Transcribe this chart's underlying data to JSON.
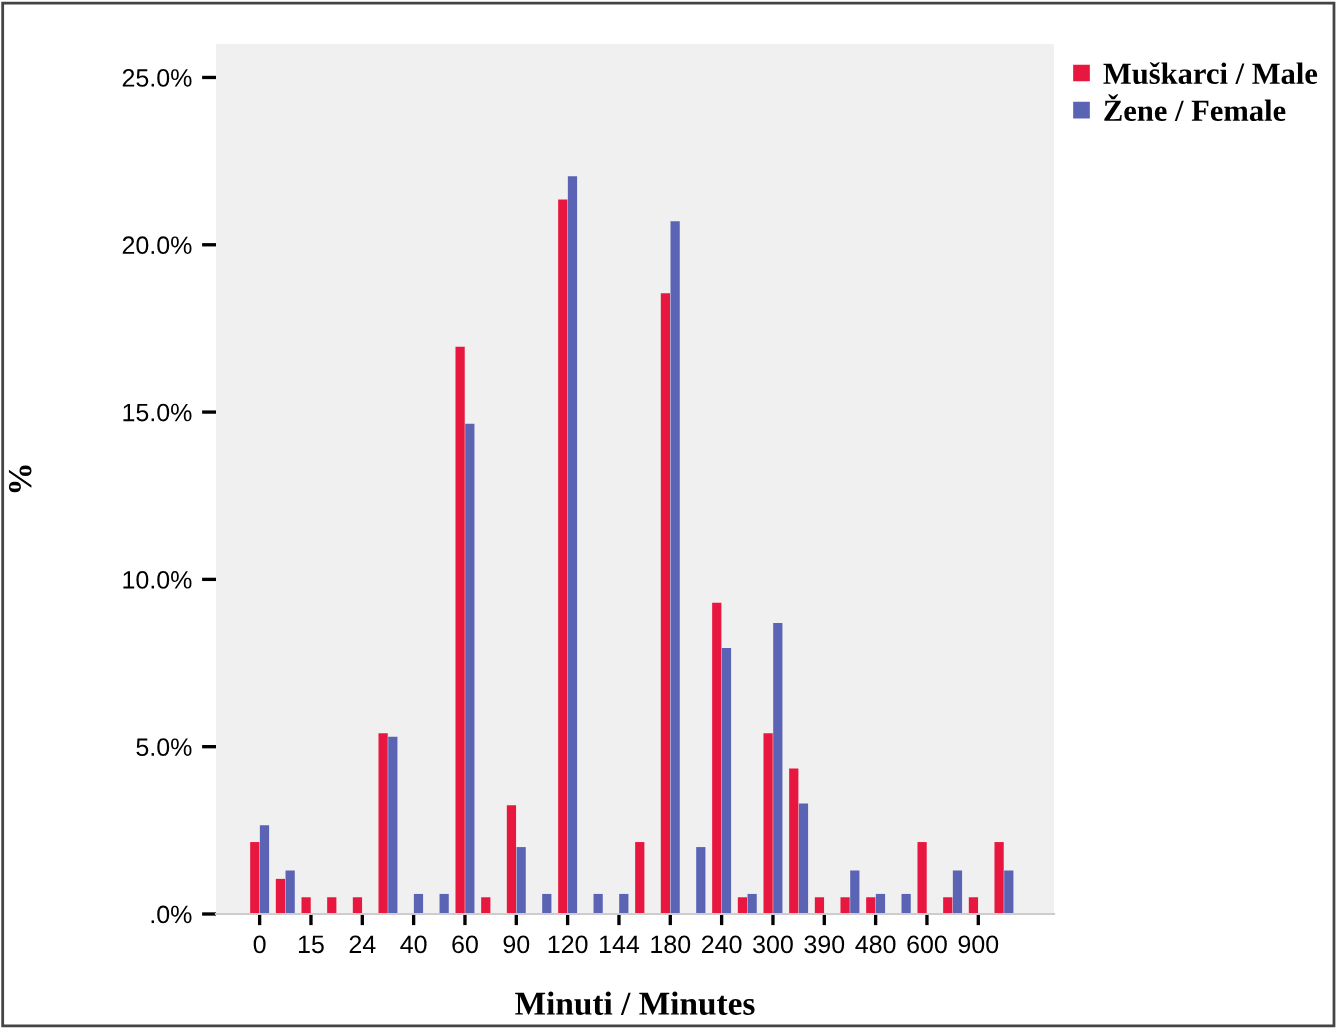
{
  "chart_data": {
    "type": "bar",
    "xlabel": "Minuti / Minutes",
    "ylabel": "%",
    "categories": [
      "0",
      null,
      "15",
      null,
      "24",
      null,
      "40",
      null,
      "60",
      null,
      "90",
      null,
      "120",
      null,
      "144",
      null,
      "180",
      null,
      "240",
      null,
      "300",
      null,
      "390",
      null,
      "480",
      null,
      "600",
      null,
      "900",
      null
    ],
    "series": [
      {
        "name": "Muškarci / Male",
        "color": "#e8173f",
        "values": [
          2.15,
          1.05,
          0.5,
          0.5,
          0.5,
          5.4,
          null,
          null,
          16.95,
          0.5,
          3.25,
          null,
          21.35,
          null,
          null,
          2.15,
          18.55,
          null,
          9.3,
          0.5,
          5.4,
          4.35,
          0.5,
          0.5,
          0.5,
          null,
          2.15,
          0.5,
          0.5,
          2.15
        ]
      },
      {
        "name": "Žene / Female",
        "color": "#5b63b5",
        "values": [
          2.65,
          1.3,
          null,
          null,
          null,
          5.3,
          0.6,
          0.6,
          14.65,
          null,
          2.0,
          0.6,
          22.05,
          0.6,
          0.6,
          null,
          20.7,
          2.0,
          7.95,
          0.6,
          8.7,
          3.3,
          null,
          1.3,
          0.6,
          0.6,
          null,
          1.3,
          null,
          1.3
        ]
      }
    ],
    "ylim": [
      0,
      26
    ],
    "yticks": [
      {
        "value": 0,
        "label": ".0%"
      },
      {
        "value": 5,
        "label": "5.0%"
      },
      {
        "value": 10,
        "label": "10.0%"
      },
      {
        "value": 15,
        "label": "15.0%"
      },
      {
        "value": 20,
        "label": "20.0%"
      },
      {
        "value": 25,
        "label": "25.0%"
      }
    ],
    "grid": false,
    "legend": "top right"
  }
}
